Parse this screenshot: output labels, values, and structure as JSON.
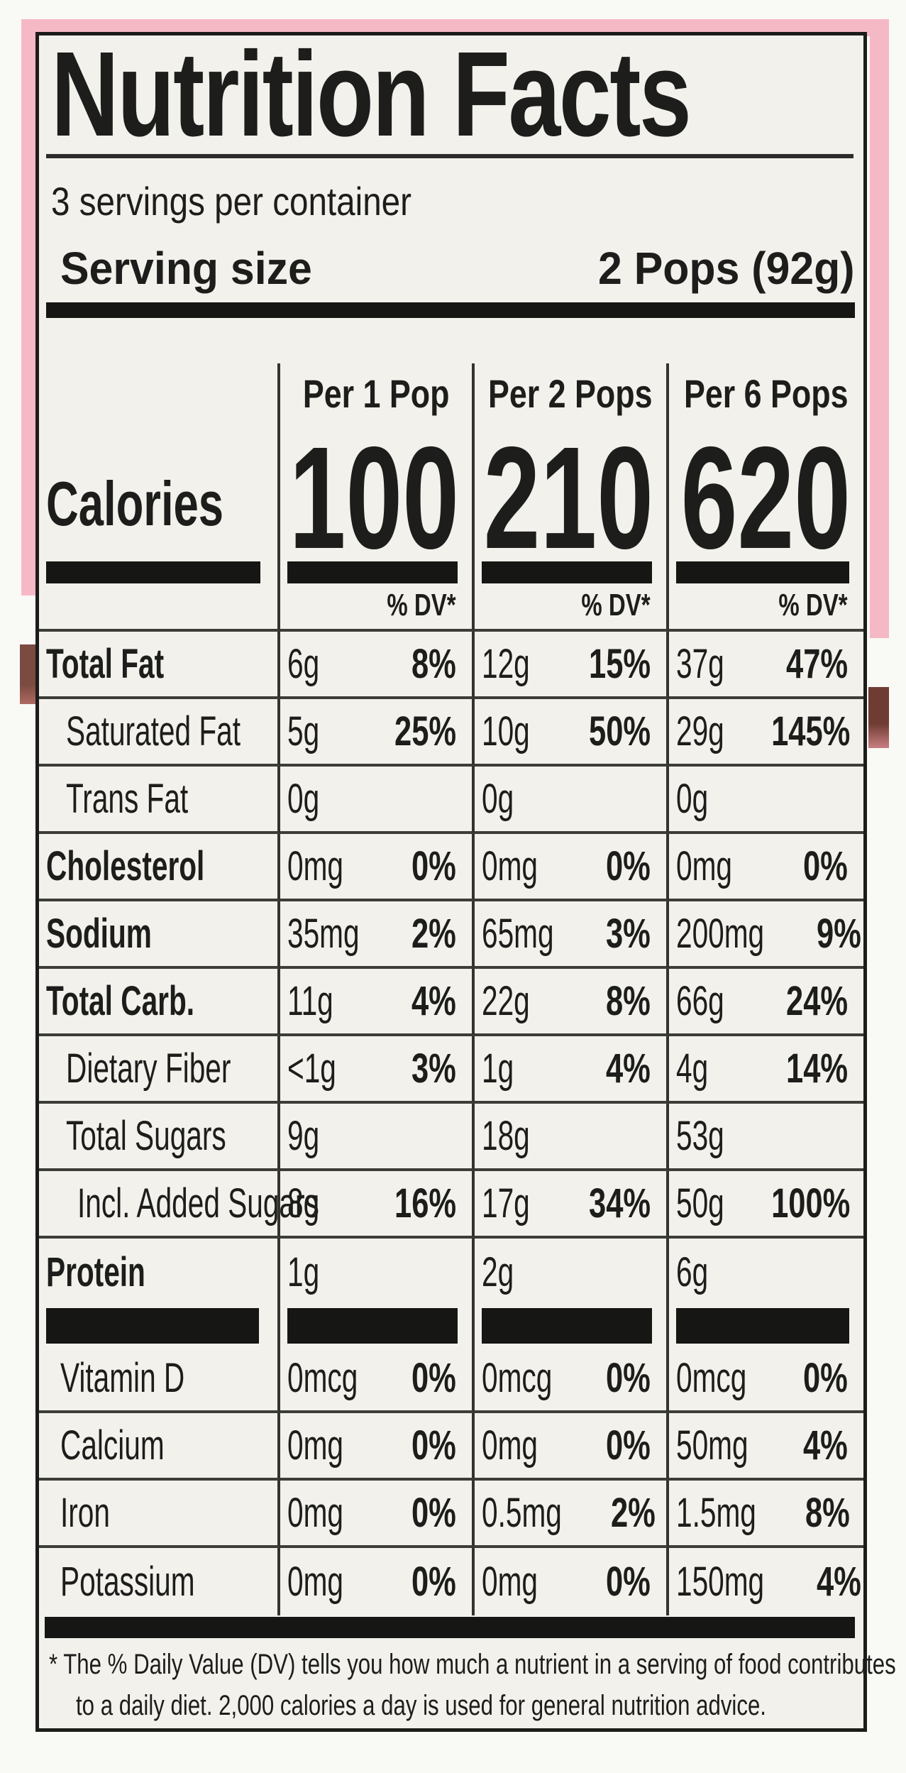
{
  "label": {
    "title": "Nutrition Facts",
    "servings_per_container": "3 servings per container",
    "serving_size_label": "Serving size",
    "serving_size_value": "2 Pops (92g)",
    "calories_label": "Calories",
    "dv_header": "% DV*",
    "columns": [
      {
        "header": "Per 1 Pop",
        "calories": "100"
      },
      {
        "header": "Per 2 Pops",
        "calories": "210"
      },
      {
        "header": "Per 6 Pops",
        "calories": "620"
      }
    ],
    "nutrients": [
      {
        "name": "Total Fat",
        "bold": true,
        "indent": 0,
        "rule_below": true,
        "cells": [
          {
            "amount": "6g",
            "dv": "8%"
          },
          {
            "amount": "12g",
            "dv": "15%"
          },
          {
            "amount": "37g",
            "dv": "47%"
          }
        ]
      },
      {
        "name": "Saturated Fat",
        "bold": false,
        "indent": 1,
        "rule_below": true,
        "cells": [
          {
            "amount": "5g",
            "dv": "25%"
          },
          {
            "amount": "10g",
            "dv": "50%"
          },
          {
            "amount": "29g",
            "dv": "145%"
          }
        ]
      },
      {
        "name": "Trans Fat",
        "bold": false,
        "indent": 1,
        "rule_below": true,
        "cells": [
          {
            "amount": "0g",
            "dv": ""
          },
          {
            "amount": "0g",
            "dv": ""
          },
          {
            "amount": "0g",
            "dv": ""
          }
        ]
      },
      {
        "name": "Cholesterol",
        "bold": true,
        "indent": 0,
        "rule_below": true,
        "cells": [
          {
            "amount": "0mg",
            "dv": "0%"
          },
          {
            "amount": "0mg",
            "dv": "0%"
          },
          {
            "amount": "0mg",
            "dv": "0%"
          }
        ]
      },
      {
        "name": "Sodium",
        "bold": true,
        "indent": 0,
        "rule_below": true,
        "cells": [
          {
            "amount": "35mg",
            "dv": "2%"
          },
          {
            "amount": "65mg",
            "dv": "3%"
          },
          {
            "amount": "200mg",
            "dv": "9%"
          }
        ]
      },
      {
        "name": "Total Carb.",
        "bold": true,
        "indent": 0,
        "rule_below": true,
        "cells": [
          {
            "amount": "11g",
            "dv": "4%"
          },
          {
            "amount": "22g",
            "dv": "8%"
          },
          {
            "amount": "66g",
            "dv": "24%"
          }
        ]
      },
      {
        "name": "Dietary Fiber",
        "bold": false,
        "indent": 1,
        "rule_below": true,
        "cells": [
          {
            "amount": "<1g",
            "dv": "3%"
          },
          {
            "amount": "1g",
            "dv": "4%"
          },
          {
            "amount": "4g",
            "dv": "14%"
          }
        ]
      },
      {
        "name": "Total Sugars",
        "bold": false,
        "indent": 1,
        "rule_below": true,
        "cells": [
          {
            "amount": "9g",
            "dv": ""
          },
          {
            "amount": "18g",
            "dv": ""
          },
          {
            "amount": "53g",
            "dv": ""
          }
        ]
      },
      {
        "name": "Incl. Added Sugars",
        "bold": false,
        "indent": 2,
        "rule_below": true,
        "cells": [
          {
            "amount": "8g",
            "dv": "16%"
          },
          {
            "amount": "17g",
            "dv": "34%"
          },
          {
            "amount": "50g",
            "dv": "100%"
          }
        ]
      },
      {
        "name": "Protein",
        "bold": true,
        "indent": 0,
        "rule_below": false,
        "cells": [
          {
            "amount": "1g",
            "dv": ""
          },
          {
            "amount": "2g",
            "dv": ""
          },
          {
            "amount": "6g",
            "dv": ""
          }
        ]
      }
    ],
    "minerals": [
      {
        "name": "Vitamin D",
        "bold": false,
        "indent": 3,
        "rule_below": true,
        "cells": [
          {
            "amount": "0mcg",
            "dv": "0%"
          },
          {
            "amount": "0mcg",
            "dv": "0%"
          },
          {
            "amount": "0mcg",
            "dv": "0%"
          }
        ]
      },
      {
        "name": "Calcium",
        "bold": false,
        "indent": 3,
        "rule_below": true,
        "cells": [
          {
            "amount": "0mg",
            "dv": "0%"
          },
          {
            "amount": "0mg",
            "dv": "0%"
          },
          {
            "amount": "50mg",
            "dv": "4%"
          }
        ]
      },
      {
        "name": "Iron",
        "bold": false,
        "indent": 3,
        "rule_below": true,
        "cells": [
          {
            "amount": "0mg",
            "dv": "0%"
          },
          {
            "amount": "0.5mg",
            "dv": "2%"
          },
          {
            "amount": "1.5mg",
            "dv": "8%"
          }
        ]
      },
      {
        "name": "Potassium",
        "bold": false,
        "indent": 3,
        "rule_below": false,
        "cells": [
          {
            "amount": "0mg",
            "dv": "0%"
          },
          {
            "amount": "0mg",
            "dv": "0%"
          },
          {
            "amount": "150mg",
            "dv": "4%"
          }
        ]
      }
    ],
    "footnote_lines": [
      "* The % Daily Value (DV) tells you how much a nutrient in a serving of food contributes",
      "to a daily diet. 2,000 calories a day is used for general nutrition advice."
    ]
  },
  "colors": {
    "pink": "#f5b9c6",
    "brown_left": "#7b4a41",
    "brown_left_fade": "#b06a60",
    "brown_right": "#6f3c33",
    "brown_right_fade": "#c97f82",
    "label_bg": "#f2f1ec",
    "ink": "#1d1d1b",
    "page_bg": "#f9f9f6"
  }
}
